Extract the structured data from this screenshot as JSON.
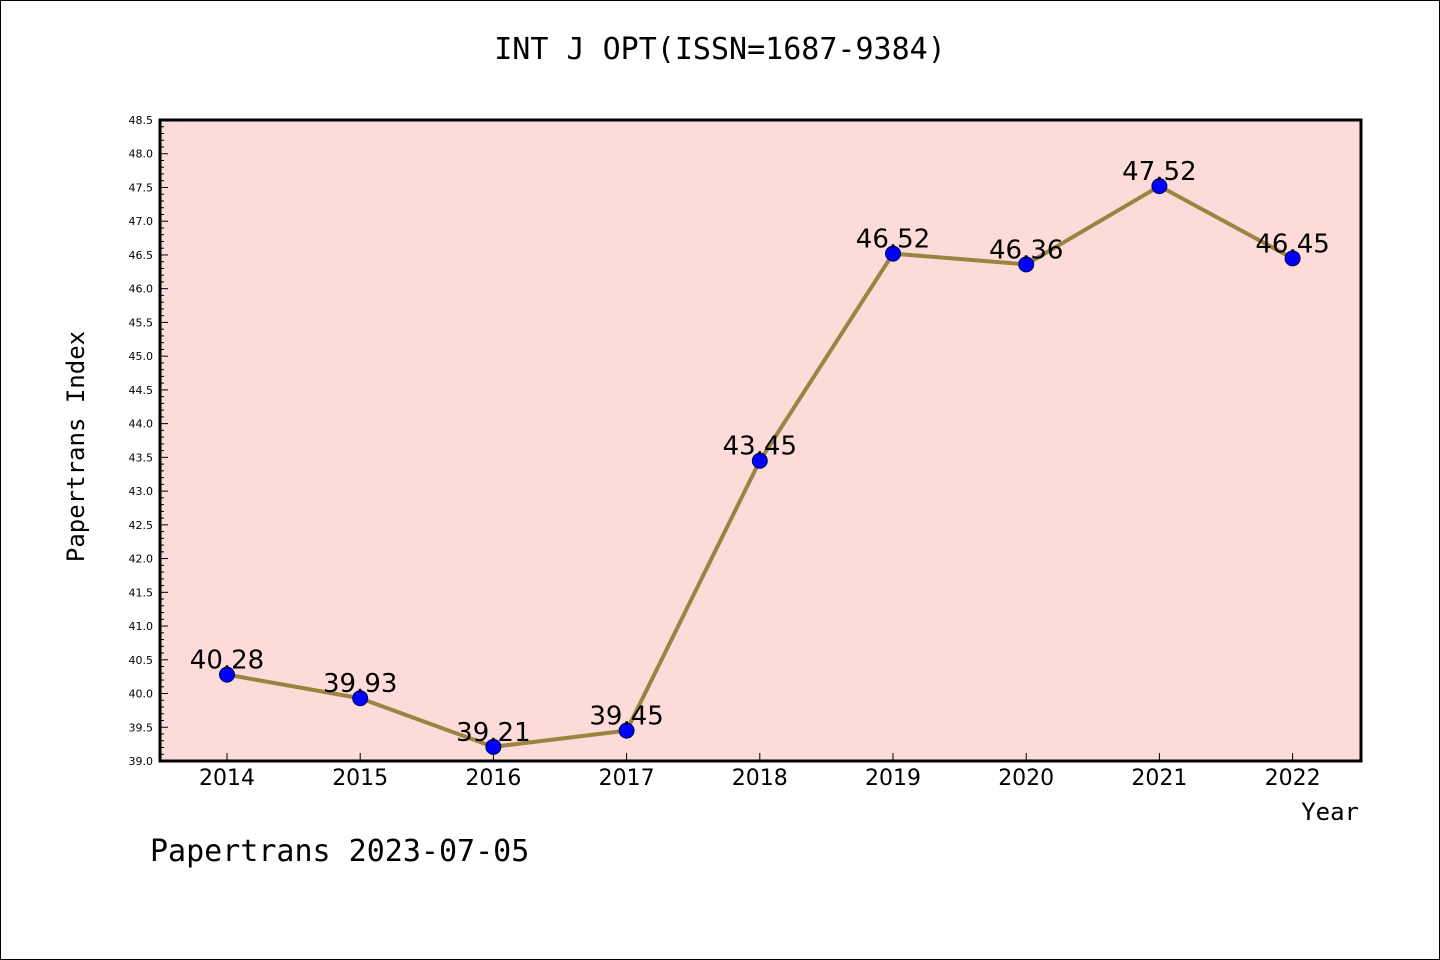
{
  "title": "INT J OPT(ISSN=1687-9384)",
  "footer": "Papertrans 2023-07-05",
  "chart_data": {
    "type": "line",
    "title": "INT J OPT(ISSN=1687-9384)",
    "xlabel": "Year",
    "ylabel": "Papertrans Index",
    "categories": [
      "2014",
      "2015",
      "2016",
      "2017",
      "2018",
      "2019",
      "2020",
      "2021",
      "2022"
    ],
    "values": [
      40.28,
      39.93,
      39.21,
      39.45,
      43.45,
      46.52,
      46.36,
      47.52,
      46.45
    ],
    "data_labels": [
      "40.28",
      "39.93",
      "39.21",
      "39.45",
      "43.45",
      "46.52",
      "46.36",
      "47.52",
      "46.45"
    ],
    "ylim": [
      39.0,
      48.5
    ],
    "yticks": [
      "39.0",
      "39.5",
      "40.0",
      "40.5",
      "41.0",
      "41.5",
      "42.0",
      "42.5",
      "43.0",
      "43.5",
      "44.0",
      "44.5",
      "45.0",
      "45.5",
      "46.0",
      "46.5",
      "47.0",
      "47.5",
      "48.0",
      "48.5"
    ],
    "grid": false,
    "colors": {
      "plot_background": "#fddbd9",
      "line": "#9b8441",
      "marker": "#0000ff"
    }
  }
}
